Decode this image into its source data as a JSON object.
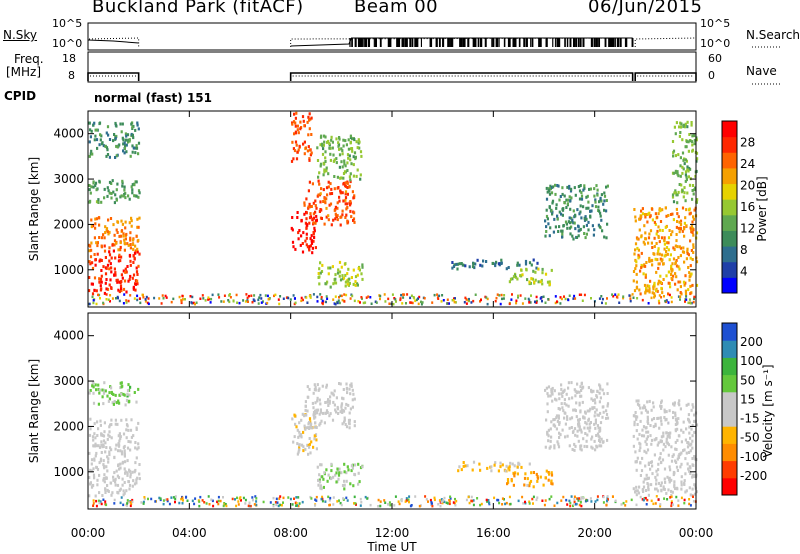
{
  "header": {
    "station": "Buckland Park (fitACF)",
    "beam": "Beam 00",
    "date": "06/Jun/2015"
  },
  "panels": {
    "nsky": {
      "left_label": "N.Sky",
      "right_label": "N.Search",
      "tick_high": "10^5",
      "tick_low": "10^0"
    },
    "freq": {
      "left_label": "Freq.",
      "left_unit": "[MHz]",
      "tick_high": "18",
      "tick_low": "8",
      "right_tick_high": "60",
      "right_tick_low": "0",
      "right_label": "Nave"
    },
    "cpid": {
      "label": "CPID",
      "mode": "normal (fast) 151"
    }
  },
  "colors": {
    "power_scale": [
      "#0000ff",
      "#1f3fa8",
      "#2e6e8e",
      "#3d8c5a",
      "#5fa850",
      "#96c832",
      "#e6d200",
      "#f5a000",
      "#ff6400",
      "#ff2800",
      "#ff0000"
    ],
    "velocity_scale": [
      "#ff0000",
      "#ff3c00",
      "#ff8c00",
      "#ffb400",
      "#c8c8c8",
      "#c8c8c8",
      "#64c83c",
      "#3cb43c",
      "#2e8cb4",
      "#1e50d2"
    ]
  },
  "chart_data": [
    {
      "type": "heatmap",
      "name": "power",
      "ylabel": "Slant Range [km]",
      "ylim": [
        180,
        4500
      ],
      "yticks": [
        "1000",
        "2000",
        "3000",
        "4000"
      ],
      "colorbar_label": "Power [dB]",
      "colorbar_ticks": [
        "4",
        "8",
        "12",
        "16",
        "20",
        "24",
        "28"
      ],
      "colorbar_range": [
        0,
        32
      ],
      "blobs": [
        {
          "t0": 0.0,
          "t1": 2.0,
          "r0": 500,
          "r1": 1450,
          "value": 28
        },
        {
          "t0": 0.0,
          "t1": 2.0,
          "r0": 1450,
          "r1": 2200,
          "value": 24
        },
        {
          "t0": 0.0,
          "t1": 2.0,
          "r0": 2500,
          "r1": 3000,
          "value": 12
        },
        {
          "t0": 0.0,
          "t1": 2.0,
          "r0": 3500,
          "r1": 4300,
          "value": 10
        },
        {
          "t0": 8.0,
          "t1": 9.0,
          "r0": 1400,
          "r1": 2300,
          "value": 30
        },
        {
          "t0": 8.0,
          "t1": 8.8,
          "r0": 3400,
          "r1": 4500,
          "value": 26
        },
        {
          "t0": 8.5,
          "t1": 10.5,
          "r0": 2000,
          "r1": 3000,
          "value": 26
        },
        {
          "t0": 9.0,
          "t1": 10.8,
          "r0": 3000,
          "r1": 4000,
          "value": 14
        },
        {
          "t0": 9.0,
          "t1": 10.8,
          "r0": 650,
          "r1": 1200,
          "value": 16
        },
        {
          "t0": 14.2,
          "t1": 17.8,
          "r0": 1050,
          "r1": 1250,
          "value": 8
        },
        {
          "t0": 16.5,
          "t1": 18.3,
          "r0": 700,
          "r1": 1050,
          "value": 16
        },
        {
          "t0": 18.0,
          "t1": 20.5,
          "r0": 1700,
          "r1": 2900,
          "value": 10
        },
        {
          "t0": 21.5,
          "t1": 24.0,
          "r0": 500,
          "r1": 2400,
          "value": 22
        },
        {
          "t0": 23.0,
          "t1": 24.0,
          "r0": 2500,
          "r1": 4300,
          "value": 14
        }
      ]
    },
    {
      "type": "heatmap",
      "name": "velocity",
      "xlabel": "Time UT",
      "ylabel": "Slant Range [km]",
      "ylim": [
        180,
        4500
      ],
      "xlim": [
        0,
        24
      ],
      "xticks": [
        "00:00",
        "04:00",
        "08:00",
        "12:00",
        "16:00",
        "20:00",
        "00:00"
      ],
      "yticks": [
        "1000",
        "2000",
        "3000",
        "4000"
      ],
      "colorbar_label": "Velocity [m s⁻¹]",
      "colorbar_ticks": [
        "-200",
        "-100",
        "-50",
        "-15",
        "15",
        "50",
        "100",
        "200"
      ],
      "colorbar_range": [
        -250,
        250
      ],
      "blobs": [
        {
          "t0": 0.0,
          "t1": 2.0,
          "r0": 500,
          "r1": 2200,
          "value": 0
        },
        {
          "t0": 0.0,
          "t1": 2.0,
          "r0": 2500,
          "r1": 3000,
          "value": 60
        },
        {
          "t0": 8.0,
          "t1": 9.0,
          "r0": 1400,
          "r1": 2300,
          "value": -40
        },
        {
          "t0": 8.5,
          "t1": 10.5,
          "r0": 2000,
          "r1": 3000,
          "value": 0
        },
        {
          "t0": 9.0,
          "t1": 10.8,
          "r0": 650,
          "r1": 1200,
          "value": 40
        },
        {
          "t0": 14.5,
          "t1": 17.5,
          "r0": 1050,
          "r1": 1250,
          "value": -60
        },
        {
          "t0": 16.5,
          "t1": 18.3,
          "r0": 700,
          "r1": 1050,
          "value": -90
        },
        {
          "t0": 18.0,
          "t1": 20.5,
          "r0": 1500,
          "r1": 3000,
          "value": 0
        },
        {
          "t0": 21.5,
          "t1": 24.0,
          "r0": 500,
          "r1": 2600,
          "value": 0
        }
      ]
    }
  ]
}
